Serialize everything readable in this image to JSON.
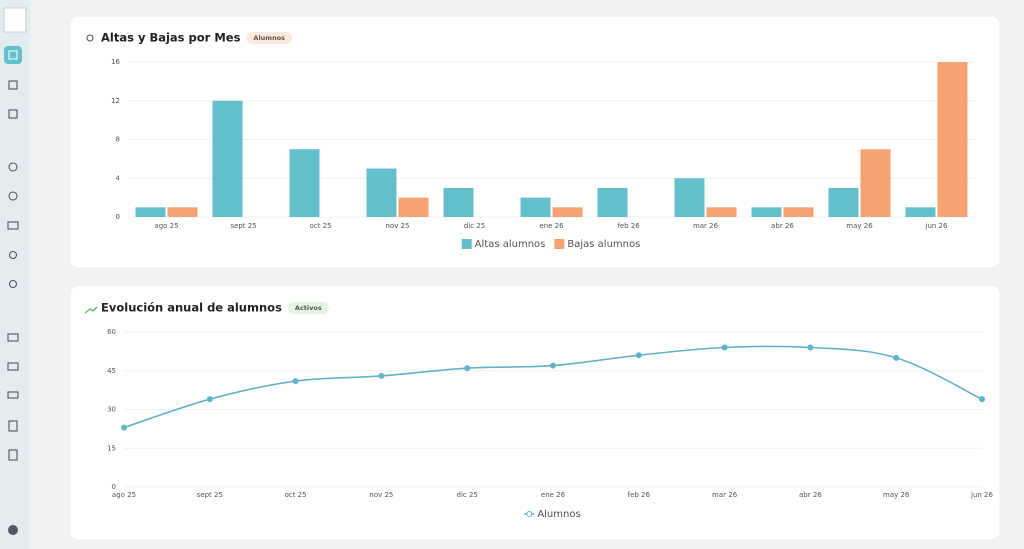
{
  "chart_data": [
    {
      "type": "bar",
      "title": "Altas y Bajas por Mes",
      "badge": "Alumnos",
      "categories": [
        "ago 25",
        "sept 25",
        "oct 25",
        "nov 25",
        "dic 25",
        "ene 26",
        "feb 26",
        "mar 26",
        "abr 26",
        "may 26",
        "jun 26"
      ],
      "series": [
        {
          "name": "Altas alumnos",
          "color": "#63bfcc",
          "values": [
            1,
            12,
            7,
            5,
            3,
            2,
            3,
            4,
            1,
            3,
            1
          ]
        },
        {
          "name": "Bajas alumnos",
          "color": "#f6a372",
          "values": [
            1,
            0,
            0,
            2,
            0,
            1,
            0,
            1,
            1,
            7,
            16
          ]
        }
      ],
      "ylim": [
        0,
        16
      ],
      "yticks": [
        0,
        4,
        8,
        12,
        16
      ],
      "grid": true,
      "legend": "bottom"
    },
    {
      "type": "line",
      "title": "Evolución anual de alumnos",
      "badge": "Activos",
      "categories": [
        "ago 25",
        "sept 25",
        "oct 25",
        "nov 25",
        "dic 25",
        "ene 26",
        "feb 26",
        "mar 26",
        "abr 26",
        "may 26",
        "jun 26"
      ],
      "series": [
        {
          "name": "Alumnos",
          "color": "#63b3c8",
          "values": [
            23,
            34,
            41,
            43,
            46,
            47,
            51,
            54,
            54,
            50,
            34
          ]
        }
      ],
      "ylim": [
        0,
        60
      ],
      "yticks": [
        0,
        15,
        30,
        45,
        60
      ],
      "grid": true,
      "legend": "bottom"
    }
  ]
}
